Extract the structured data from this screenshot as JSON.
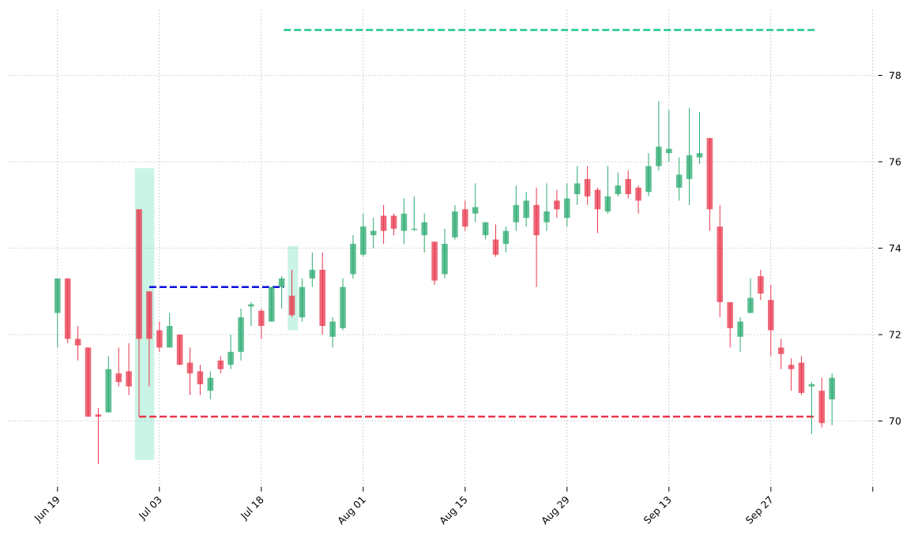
{
  "chart_data": {
    "type": "candlestick",
    "title": "",
    "xlabel": "",
    "ylabel": "",
    "ylim": [
      68.6,
      79.5
    ],
    "y_ticks": [
      70,
      72,
      74,
      76,
      78
    ],
    "grid": true,
    "x_tick_labels": [
      "Jun 19",
      "Jul 03",
      "Jul 18",
      "Aug 01",
      "Aug 15",
      "Aug 29",
      "Sep 13",
      "Sep 27",
      ""
    ],
    "x_tick_index": [
      0,
      10,
      20,
      30,
      40,
      50,
      60,
      70,
      80
    ],
    "colors": {
      "up": "#2aaa6f",
      "down": "#e8374c",
      "highlight": "#2ad596",
      "resistance_line": "#1fc78a",
      "support_line": "#e8374c",
      "breakout_line": "#0a0adf",
      "grid": "#b0b0b0"
    },
    "candles": [
      {
        "date": "Jun 19",
        "o": 72.5,
        "h": 73.3,
        "l": 71.7,
        "c": 73.3
      },
      {
        "date": "Jun 20",
        "o": 73.3,
        "h": 73.3,
        "l": 71.8,
        "c": 71.9
      },
      {
        "date": "Jun 21",
        "o": 71.9,
        "h": 72.2,
        "l": 71.4,
        "c": 71.75
      },
      {
        "date": "Jun 22",
        "o": 71.7,
        "h": 71.7,
        "l": 70.1,
        "c": 70.1
      },
      {
        "date": "Jun 23",
        "o": 70.15,
        "h": 70.3,
        "l": 69.0,
        "c": 70.1
      },
      {
        "date": "Jun 26",
        "o": 70.2,
        "h": 71.5,
        "l": 70.2,
        "c": 71.2
      },
      {
        "date": "Jun 27",
        "o": 71.1,
        "h": 71.7,
        "l": 70.8,
        "c": 70.9
      },
      {
        "date": "Jun 28",
        "o": 71.15,
        "h": 71.8,
        "l": 70.6,
        "c": 70.8
      },
      {
        "date": "Jun 29",
        "o": 74.9,
        "h": 74.9,
        "l": 70.1,
        "c": 71.9
      },
      {
        "date": "Jun 30",
        "o": 73.0,
        "h": 73.0,
        "l": 70.8,
        "c": 71.9
      },
      {
        "date": "Jul 03",
        "o": 72.1,
        "h": 72.3,
        "l": 71.6,
        "c": 71.7
      },
      {
        "date": "Jul 05",
        "o": 71.7,
        "h": 72.5,
        "l": 71.7,
        "c": 72.2
      },
      {
        "date": "Jul 06",
        "o": 72.0,
        "h": 72.0,
        "l": 71.3,
        "c": 71.3
      },
      {
        "date": "Jul 07",
        "o": 71.35,
        "h": 71.7,
        "l": 70.6,
        "c": 71.1
      },
      {
        "date": "Jul 10",
        "o": 71.15,
        "h": 71.3,
        "l": 70.6,
        "c": 70.85
      },
      {
        "date": "Jul 11",
        "o": 70.7,
        "h": 71.15,
        "l": 70.5,
        "c": 71.0
      },
      {
        "date": "Jul 12",
        "o": 71.4,
        "h": 71.5,
        "l": 71.1,
        "c": 71.2
      },
      {
        "date": "Jul 13",
        "o": 71.3,
        "h": 72.0,
        "l": 71.2,
        "c": 71.6
      },
      {
        "date": "Jul 14",
        "o": 71.6,
        "h": 72.6,
        "l": 71.4,
        "c": 72.4
      },
      {
        "date": "Jul 17",
        "o": 72.65,
        "h": 72.75,
        "l": 72.2,
        "c": 72.7
      },
      {
        "date": "Jul 18",
        "o": 72.55,
        "h": 72.6,
        "l": 71.9,
        "c": 72.2
      },
      {
        "date": "Jul 19",
        "o": 72.3,
        "h": 73.1,
        "l": 72.3,
        "c": 73.1
      },
      {
        "date": "Jul 20",
        "o": 73.1,
        "h": 73.35,
        "l": 72.6,
        "c": 73.3
      },
      {
        "date": "Jul 21",
        "o": 72.9,
        "h": 73.5,
        "l": 72.4,
        "c": 72.45
      },
      {
        "date": "Jul 24",
        "o": 72.4,
        "h": 73.3,
        "l": 72.3,
        "c": 73.1
      },
      {
        "date": "Jul 25",
        "o": 73.3,
        "h": 73.9,
        "l": 73.1,
        "c": 73.5
      },
      {
        "date": "Jul 26",
        "o": 73.5,
        "h": 73.9,
        "l": 72.0,
        "c": 72.2
      },
      {
        "date": "Jul 27",
        "o": 71.95,
        "h": 72.4,
        "l": 71.7,
        "c": 72.3
      },
      {
        "date": "Jul 28",
        "o": 72.15,
        "h": 73.3,
        "l": 72.1,
        "c": 73.1
      },
      {
        "date": "Jul 31",
        "o": 73.4,
        "h": 74.3,
        "l": 73.3,
        "c": 74.1
      },
      {
        "date": "Aug 01",
        "o": 73.85,
        "h": 74.8,
        "l": 73.8,
        "c": 74.5
      },
      {
        "date": "Aug 02",
        "o": 74.3,
        "h": 74.7,
        "l": 74.0,
        "c": 74.4
      },
      {
        "date": "Aug 03",
        "o": 74.75,
        "h": 75.0,
        "l": 74.1,
        "c": 74.4
      },
      {
        "date": "Aug 04",
        "o": 74.75,
        "h": 74.8,
        "l": 74.3,
        "c": 74.45
      },
      {
        "date": "Aug 07",
        "o": 74.4,
        "h": 75.15,
        "l": 74.1,
        "c": 74.8
      },
      {
        "date": "Aug 08",
        "o": 74.45,
        "h": 75.2,
        "l": 74.4,
        "c": 74.45
      },
      {
        "date": "Aug 09",
        "o": 74.3,
        "h": 74.8,
        "l": 73.9,
        "c": 74.6
      },
      {
        "date": "Aug 10",
        "o": 74.15,
        "h": 74.15,
        "l": 73.15,
        "c": 73.25
      },
      {
        "date": "Aug 11",
        "o": 73.4,
        "h": 74.45,
        "l": 73.3,
        "c": 74.1
      },
      {
        "date": "Aug 14",
        "o": 74.25,
        "h": 75.0,
        "l": 74.2,
        "c": 74.85
      },
      {
        "date": "Aug 15",
        "o": 74.9,
        "h": 75.1,
        "l": 74.4,
        "c": 74.5
      },
      {
        "date": "Aug 16",
        "o": 74.8,
        "h": 75.5,
        "l": 74.6,
        "c": 74.95
      },
      {
        "date": "Aug 17",
        "o": 74.3,
        "h": 74.6,
        "l": 74.2,
        "c": 74.6
      },
      {
        "date": "Aug 18",
        "o": 74.2,
        "h": 74.55,
        "l": 73.8,
        "c": 73.85
      },
      {
        "date": "Aug 21",
        "o": 74.1,
        "h": 74.5,
        "l": 73.9,
        "c": 74.4
      },
      {
        "date": "Aug 22",
        "o": 74.6,
        "h": 75.45,
        "l": 74.4,
        "c": 75.0
      },
      {
        "date": "Aug 23",
        "o": 74.7,
        "h": 75.3,
        "l": 74.5,
        "c": 75.1
      },
      {
        "date": "Aug 24",
        "o": 75.0,
        "h": 75.4,
        "l": 73.1,
        "c": 74.3
      },
      {
        "date": "Aug 25",
        "o": 74.6,
        "h": 75.5,
        "l": 74.4,
        "c": 74.85
      },
      {
        "date": "Aug 28",
        "o": 75.1,
        "h": 75.35,
        "l": 74.7,
        "c": 74.9
      },
      {
        "date": "Aug 29",
        "o": 74.7,
        "h": 75.5,
        "l": 74.5,
        "c": 75.15
      },
      {
        "date": "Aug 30",
        "o": 75.25,
        "h": 75.9,
        "l": 75.0,
        "c": 75.5
      },
      {
        "date": "Aug 31",
        "o": 75.6,
        "h": 75.9,
        "l": 75.0,
        "c": 75.2
      },
      {
        "date": "Sep 01",
        "o": 75.35,
        "h": 75.4,
        "l": 74.35,
        "c": 74.9
      },
      {
        "date": "Sep 05",
        "o": 74.85,
        "h": 75.9,
        "l": 74.8,
        "c": 75.2
      },
      {
        "date": "Sep 06",
        "o": 75.25,
        "h": 75.75,
        "l": 75.2,
        "c": 75.45
      },
      {
        "date": "Sep 07",
        "o": 75.6,
        "h": 75.8,
        "l": 75.15,
        "c": 75.25
      },
      {
        "date": "Sep 08",
        "o": 75.4,
        "h": 75.45,
        "l": 74.8,
        "c": 75.1
      },
      {
        "date": "Sep 11",
        "o": 75.3,
        "h": 76.2,
        "l": 75.2,
        "c": 75.9
      },
      {
        "date": "Sep 12",
        "o": 75.9,
        "h": 77.4,
        "l": 75.8,
        "c": 76.35
      },
      {
        "date": "Sep 13",
        "o": 76.2,
        "h": 77.2,
        "l": 76.0,
        "c": 76.3
      },
      {
        "date": "Sep 14",
        "o": 75.4,
        "h": 76.1,
        "l": 75.1,
        "c": 75.7
      },
      {
        "date": "Sep 15",
        "o": 75.6,
        "h": 77.25,
        "l": 75.0,
        "c": 76.15
      },
      {
        "date": "Sep 18",
        "o": 76.1,
        "h": 77.15,
        "l": 75.95,
        "c": 76.2
      },
      {
        "date": "Sep 19",
        "o": 76.55,
        "h": 76.55,
        "l": 74.4,
        "c": 74.9
      },
      {
        "date": "Sep 20",
        "o": 74.5,
        "h": 75.0,
        "l": 72.4,
        "c": 72.75
      },
      {
        "date": "Sep 21",
        "o": 72.75,
        "h": 72.75,
        "l": 71.7,
        "c": 72.15
      },
      {
        "date": "Sep 22",
        "o": 71.95,
        "h": 72.4,
        "l": 71.6,
        "c": 72.3
      },
      {
        "date": "Sep 25",
        "o": 72.5,
        "h": 73.3,
        "l": 72.5,
        "c": 72.85
      },
      {
        "date": "Sep 26",
        "o": 73.35,
        "h": 73.5,
        "l": 72.8,
        "c": 72.95
      },
      {
        "date": "Sep 27",
        "o": 72.8,
        "h": 73.15,
        "l": 71.5,
        "c": 72.1
      },
      {
        "date": "Sep 28",
        "o": 71.7,
        "h": 71.9,
        "l": 71.2,
        "c": 71.55
      },
      {
        "date": "Sep 29",
        "o": 71.3,
        "h": 71.45,
        "l": 70.7,
        "c": 71.2
      },
      {
        "date": "Oct 02",
        "o": 71.35,
        "h": 71.5,
        "l": 70.6,
        "c": 70.65
      },
      {
        "date": "Oct 03",
        "o": 70.8,
        "h": 70.9,
        "l": 69.7,
        "c": 70.85
      },
      {
        "date": "Oct 04",
        "o": 70.7,
        "h": 71.0,
        "l": 69.85,
        "c": 69.95
      },
      {
        "date": "Oct 05",
        "o": 70.5,
        "h": 71.1,
        "l": 69.9,
        "c": 71.0
      }
    ],
    "highlights": [
      {
        "from_index": 7.6,
        "to_index": 9.5,
        "y_low": 69.1,
        "y_high": 75.85
      },
      {
        "from_index": 22.6,
        "to_index": 23.6,
        "y_low": 72.1,
        "y_high": 74.05
      }
    ],
    "levels": [
      {
        "kind": "resistance",
        "value": 79.05,
        "from_index": 22.2,
        "to_index": 74.5
      },
      {
        "kind": "breakout",
        "value": 73.1,
        "from_index": 9.0,
        "to_index": 22.2
      },
      {
        "kind": "support",
        "value": 70.1,
        "from_index": 8.0,
        "to_index": 74.5
      }
    ]
  }
}
